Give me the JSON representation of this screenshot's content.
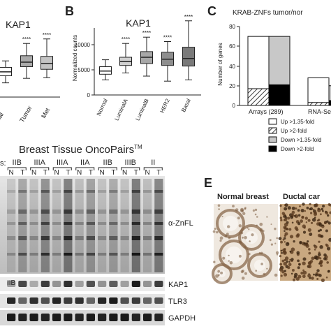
{
  "panels": {
    "A": {
      "letter": "",
      "title": "KAP1",
      "tick_labels": [
        "mal",
        "Tumor",
        "Met"
      ],
      "significance": [
        "",
        "****",
        "****"
      ]
    },
    "B": {
      "letter": "B",
      "title": "KAP1",
      "ylabel": "Normalized counts",
      "yticks": [
        "10000",
        "5000",
        "0"
      ],
      "significance": [
        "",
        "****",
        "****",
        "****",
        "****"
      ]
    },
    "C": {
      "letter": "C",
      "title": "KRAB-ZNFs tumor/nor",
      "ylabel": "Number of genes",
      "yticks": [
        "80",
        "60",
        "40",
        "20",
        "0"
      ],
      "legend": [
        "Up >1.35-fold",
        "Up >2-fold",
        "Down >1.35-fold",
        "Down >2-fold"
      ]
    },
    "D": {
      "title": "Breast Tissue OncoPairs",
      "title_sup": "TM",
      "stages": [
        "IIB",
        "IIIA",
        "IIIA",
        "IIA",
        "IIB",
        "IIIB",
        "II"
      ],
      "lane_letters": [
        "N",
        "T",
        "N",
        "T",
        "N",
        "T",
        "N",
        "T",
        "N",
        "T",
        "N",
        "T",
        "N",
        "T"
      ],
      "blot_labels": [
        "α-ZnFL",
        "KAP1",
        "TLR3",
        "GAPDH"
      ],
      "lower_stages": [
        "IIB"
      ],
      "left_partial": "s:"
    },
    "E": {
      "letter": "E",
      "tissue_labels": [
        "Normal breast",
        "Ductal car"
      ]
    }
  },
  "chart_data": [
    {
      "type": "box",
      "panel": "A",
      "title": "KAP1",
      "categories": [
        "mal",
        "Tumor",
        "Met"
      ],
      "boxes": [
        {
          "min": 2200,
          "q1": 3300,
          "median": 3900,
          "q3": 4600,
          "max": 5600
        },
        {
          "min": 2900,
          "q1": 4700,
          "median": 5400,
          "q3": 6400,
          "max": 8300
        },
        {
          "min": 3000,
          "q1": 4300,
          "median": 5200,
          "q3": 6300,
          "max": 9000
        }
      ],
      "ylim": [
        0,
        12000
      ]
    },
    {
      "type": "box",
      "panel": "B",
      "title": "KAP1",
      "ylabel": "Normalized counts",
      "categories": [
        "Normal",
        "LuminalA",
        "LuminalB",
        "HER2",
        "Basal"
      ],
      "boxes": [
        {
          "min": 2400,
          "q1": 3300,
          "median": 3800,
          "q3": 4500,
          "max": 5600
        },
        {
          "min": 3500,
          "q1": 4700,
          "median": 5300,
          "q3": 6000,
          "max": 8200
        },
        {
          "min": 3000,
          "q1": 5000,
          "median": 6000,
          "q3": 6900,
          "max": 9200
        },
        {
          "min": 2200,
          "q1": 4700,
          "median": 5700,
          "q3": 6800,
          "max": 8500
        },
        {
          "min": 2400,
          "q1": 4600,
          "median": 5800,
          "q3": 7600,
          "max": 11800
        }
      ],
      "ylim": [
        0,
        12000
      ]
    },
    {
      "type": "bar",
      "panel": "C",
      "title": "KRAB-ZNFs tumor/nor",
      "ylabel": "Number of genes",
      "categories": [
        "Arrays (289)",
        "RNA-Se"
      ],
      "series": [
        {
          "name": "Up >1.35-fold",
          "values": [
            70,
            28
          ]
        },
        {
          "name": "Up >2-fold",
          "values": [
            17,
            3
          ]
        },
        {
          "name": "Down >1.35-fold",
          "values": [
            70,
            20
          ]
        },
        {
          "name": "Down >2-fold",
          "values": [
            21,
            5
          ]
        }
      ],
      "ylim": [
        0,
        80
      ]
    }
  ]
}
